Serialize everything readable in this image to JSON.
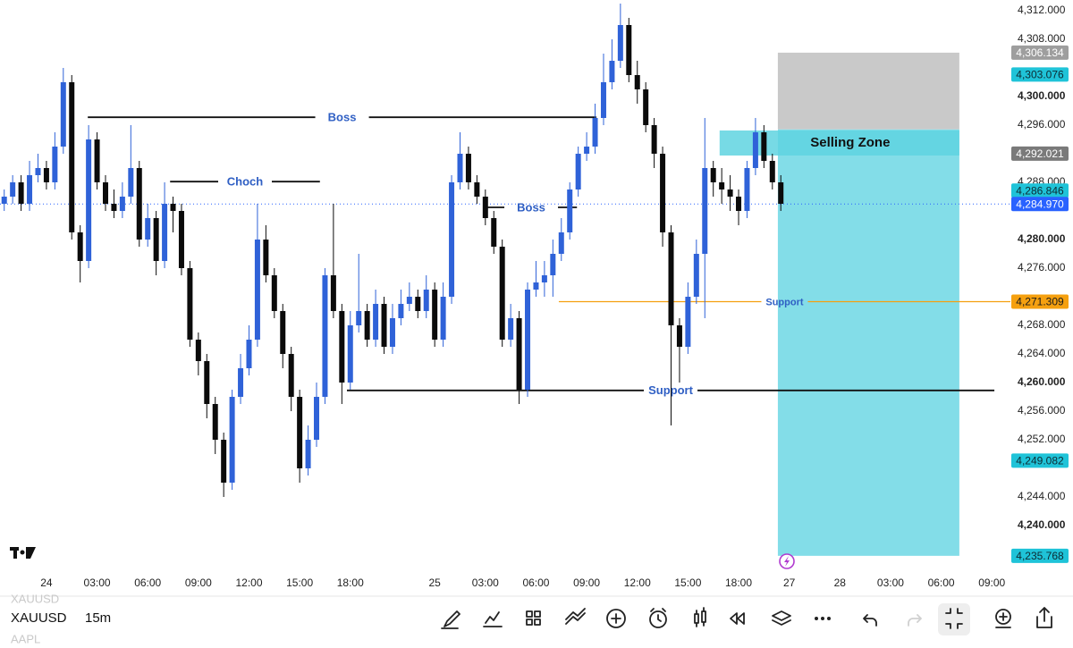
{
  "chart_data": {
    "type": "candlestick",
    "x": [
      1,
      3,
      5,
      7,
      9,
      11,
      13,
      15,
      17,
      19,
      21,
      23,
      25,
      27,
      29,
      31,
      33,
      35,
      37,
      39,
      41,
      43,
      45,
      47,
      49,
      51,
      53,
      55,
      57,
      59,
      61,
      63,
      65,
      67,
      69,
      71,
      73,
      75,
      77,
      79,
      81,
      83,
      85,
      87,
      89,
      91,
      93,
      95,
      97,
      99,
      101,
      103,
      105,
      107,
      109,
      111,
      113,
      115,
      117,
      119,
      121,
      123,
      125,
      127,
      129,
      131,
      133,
      135,
      137,
      139,
      141,
      143,
      145,
      147,
      149,
      151,
      153,
      155,
      157,
      159,
      161,
      163,
      165,
      167,
      169,
      171,
      173,
      175,
      177,
      179,
      181,
      183,
      185
    ],
    "open": [
      4285,
      4286,
      4288,
      4285,
      4289,
      4290,
      4288,
      4293,
      4302,
      4281,
      4277,
      4294,
      4288,
      4285,
      4284,
      4286,
      4290,
      4280,
      4283,
      4277,
      4285,
      4284,
      4276,
      4266,
      4263,
      4257,
      4252,
      4246,
      4258,
      4262,
      4266,
      4280,
      4275,
      4270,
      4264,
      4258,
      4248,
      4252,
      4258,
      4275,
      4270,
      4260,
      4268,
      4270,
      4266,
      4271,
      4265,
      4269,
      4271,
      4272,
      4270,
      4273,
      4266,
      4272,
      4288,
      4292,
      4288,
      4286,
      4283,
      4279,
      4266,
      4269,
      4259,
      4273,
      4274,
      4275,
      4278,
      4281,
      4287,
      4292,
      4293,
      4297,
      4302,
      4305,
      4310,
      4303,
      4301,
      4296,
      4292,
      4281,
      4268,
      4265,
      4272,
      4278,
      4290,
      4288,
      4287,
      4286,
      4284,
      4290,
      4295,
      4291,
      4288
    ],
    "high": [
      4287,
      4289,
      4289,
      4291,
      4292,
      4291,
      4295,
      4304,
      4303,
      4282,
      4296,
      4295,
      4289,
      4287,
      4288,
      4296,
      4291,
      4285,
      4284,
      4288,
      4286,
      4285,
      4277,
      4267,
      4264,
      4258,
      4253,
      4259,
      4264,
      4268,
      4285,
      4282,
      4276,
      4271,
      4265,
      4259,
      4254,
      4260,
      4276,
      4285,
      4271,
      4270,
      4278,
      4271,
      4273,
      4272,
      4271,
      4273,
      4274,
      4273,
      4275,
      4274,
      4274,
      4289,
      4295,
      4293,
      4289,
      4287,
      4284,
      4280,
      4271,
      4270,
      4274,
      4277,
      4277,
      4280,
      4283,
      4288,
      4293,
      4295,
      4299,
      4306,
      4308,
      4313,
      4311,
      4305,
      4302,
      4297,
      4293,
      4282,
      4269,
      4274,
      4280,
      4297,
      4291,
      4290,
      4289,
      4287,
      4291,
      4297,
      4296,
      4292,
      4289
    ],
    "low": [
      4284,
      4285,
      4284,
      4284,
      4288,
      4287,
      4287,
      4292,
      4280,
      4274,
      4276,
      4287,
      4284,
      4283,
      4283,
      4285,
      4279,
      4279,
      4275,
      4276,
      4281,
      4275,
      4265,
      4261,
      4255,
      4250,
      4244,
      4245,
      4257,
      4261,
      4265,
      4274,
      4269,
      4262,
      4256,
      4246,
      4247,
      4251,
      4257,
      4269,
      4257,
      4259,
      4267,
      4265,
      4265,
      4264,
      4264,
      4268,
      4270,
      4269,
      4269,
      4265,
      4265,
      4271,
      4287,
      4287,
      4285,
      4282,
      4278,
      4265,
      4265,
      4257,
      4258,
      4272,
      4272,
      4272,
      4277,
      4280,
      4286,
      4291,
      4292,
      4296,
      4301,
      4304,
      4302,
      4299,
      4295,
      4290,
      4279,
      4254,
      4260,
      4264,
      4271,
      4269,
      4286,
      4285,
      4284,
      4282,
      4283,
      4289,
      4290,
      4287,
      4284
    ],
    "close": [
      4286,
      4288,
      4285,
      4289,
      4290,
      4288,
      4293,
      4302,
      4281,
      4277,
      4294,
      4288,
      4285,
      4284,
      4286,
      4290,
      4280,
      4283,
      4277,
      4285,
      4284,
      4276,
      4266,
      4263,
      4257,
      4252,
      4246,
      4258,
      4262,
      4266,
      4280,
      4275,
      4270,
      4264,
      4258,
      4248,
      4252,
      4258,
      4275,
      4270,
      4260,
      4268,
      4270,
      4266,
      4271,
      4265,
      4269,
      4271,
      4272,
      4270,
      4273,
      4266,
      4272,
      4288,
      4292,
      4288,
      4286,
      4283,
      4279,
      4266,
      4269,
      4259,
      4273,
      4274,
      4275,
      4278,
      4281,
      4287,
      4292,
      4293,
      4297,
      4302,
      4305,
      4310,
      4303,
      4301,
      4296,
      4292,
      4281,
      4268,
      4265,
      4272,
      4278,
      4290,
      4288,
      4287,
      4286,
      4284,
      4290,
      4295,
      4291,
      4288,
      4285
    ],
    "up_color": "#2f62d8",
    "down_color": "#0b0b0b",
    "xlim": [
      0,
      239.4
    ],
    "xticks": [
      {
        "value": 11,
        "label": "24"
      },
      {
        "value": 23,
        "label": "03:00"
      },
      {
        "value": 35,
        "label": "06:00"
      },
      {
        "value": 47,
        "label": "09:00"
      },
      {
        "value": 59,
        "label": "12:00"
      },
      {
        "value": 71,
        "label": "15:00"
      },
      {
        "value": 83,
        "label": "18:00"
      },
      {
        "value": 103,
        "label": "25"
      },
      {
        "value": 115,
        "label": "03:00"
      },
      {
        "value": 127,
        "label": "06:00"
      },
      {
        "value": 139,
        "label": "09:00"
      },
      {
        "value": 151,
        "label": "12:00"
      },
      {
        "value": 163,
        "label": "15:00"
      },
      {
        "value": 175,
        "label": "18:00"
      },
      {
        "value": 187,
        "label": "27"
      },
      {
        "value": 199,
        "label": "28"
      },
      {
        "value": 211,
        "label": "03:00"
      },
      {
        "value": 223,
        "label": "06:00"
      },
      {
        "value": 235,
        "label": "09:00"
      }
    ],
    "ylim": [
      4233.5,
      4313.5
    ],
    "yticks": [
      {
        "value": 4312,
        "label": "4,312.000"
      },
      {
        "value": 4308,
        "label": "4,308.000"
      },
      {
        "value": 4300,
        "label": "4,300.000"
      },
      {
        "value": 4296,
        "label": "4,296.000"
      },
      {
        "value": 4288,
        "label": "4,288.000"
      },
      {
        "value": 4280,
        "label": "4,280.000"
      },
      {
        "value": 4276,
        "label": "4,276.000"
      },
      {
        "value": 4268,
        "label": "4,268.000"
      },
      {
        "value": 4264,
        "label": "4,264.000"
      },
      {
        "value": 4260,
        "label": "4,260.000"
      },
      {
        "value": 4256,
        "label": "4,256.000"
      },
      {
        "value": 4252,
        "label": "4,252.000"
      },
      {
        "value": 4244,
        "label": "4,244.000"
      },
      {
        "value": 4240,
        "label": "4,240.000"
      }
    ],
    "grid": false,
    "price_labels": [
      {
        "value": 4306.134,
        "label": "4,306.134",
        "color": "#9e9e9e",
        "text_color": "#ffffff"
      },
      {
        "value": 4303.076,
        "label": "4,303.076",
        "color": "#1fc3d8",
        "text_color": "#0d2b33"
      },
      {
        "value": 4292.021,
        "label": "4,292.021",
        "color": "#7a7a7a",
        "text_color": "#ffffff"
      },
      {
        "value": 4286.846,
        "label": "4,286.846",
        "color": "#1fc3d8",
        "text_color": "#0d2b33"
      },
      {
        "value": 4284.97,
        "label": "4,284.970",
        "color": "#2962ff",
        "text_color": "#ffffff",
        "style": "last"
      },
      {
        "value": 4271.309,
        "label": "4,271.309",
        "color": "#f5a00f",
        "text_color": "#1a1a1a"
      },
      {
        "value": 4249.082,
        "label": "4,249.082",
        "color": "#1fc3d8",
        "text_color": "#0d2b33"
      },
      {
        "value": 4235.768,
        "label": "4,235.768",
        "color": "#1fc3d8",
        "text_color": "#0d2b33"
      }
    ],
    "annotations": [
      {
        "text": "Boss",
        "price": 4297.1,
        "x_start": 20.8,
        "x_end": 141.3,
        "color": "#111111",
        "size": "large"
      },
      {
        "text": "Choch",
        "price": 4288.1,
        "x_start": 40.3,
        "x_end": 75.8,
        "color": "#111111",
        "size": "large"
      },
      {
        "text": "Boss",
        "price": 4284.5,
        "x_start": 115,
        "x_end": 136.7,
        "color": "#111111",
        "size": "large"
      },
      {
        "text": "Support",
        "price": 4271.309,
        "x_start": 132.4,
        "x_end": 239.4,
        "color": "#f5a00f",
        "size": "small"
      },
      {
        "text": "Support",
        "price": 4258.9,
        "x_start": 82.2,
        "x_end": 235.6,
        "color": "#111111",
        "size": "large"
      }
    ],
    "zone": {
      "label": "Selling Zone",
      "top": 4295.25,
      "bottom": 4291.75,
      "x_start": 170.5,
      "x_end": 227.3,
      "color": "#5fd3e0"
    },
    "position": {
      "stop": 4306.134,
      "entry": 4295.4,
      "target": 4235.768,
      "x_start": 184.3,
      "x_end": 227.3,
      "risk_color": "#c9c9c9",
      "reward_color": "#83dde8"
    }
  },
  "toolbar": {
    "symbol": "XAUUSD",
    "interval": "15m",
    "faded": [
      "XAUUSD",
      "AAPL"
    ]
  }
}
